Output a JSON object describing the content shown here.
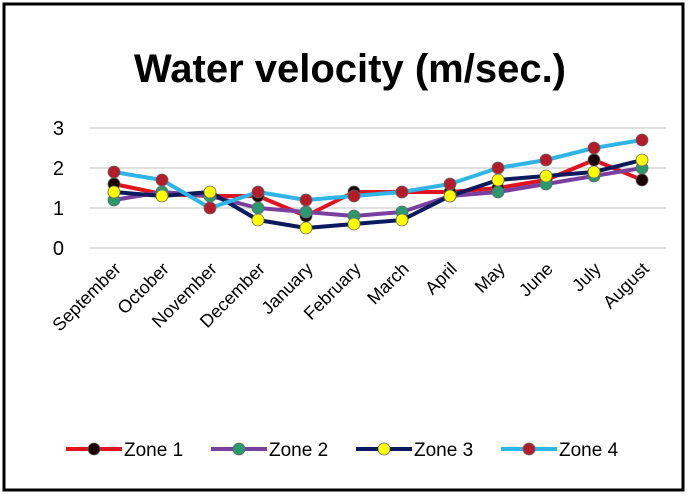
{
  "chart_data": {
    "type": "line",
    "title": "Water velocity  (m/sec.)",
    "categories": [
      "September",
      "October",
      "November",
      "December",
      "January",
      "February",
      "March",
      "April",
      "May",
      "June",
      "July",
      "August"
    ],
    "series": [
      {
        "name": "Zone 1",
        "color": "#e0141e",
        "marker_color": "#1a0000",
        "values": [
          1.6,
          1.35,
          1.3,
          1.3,
          0.8,
          1.4,
          1.4,
          1.4,
          1.5,
          1.7,
          2.2,
          1.7
        ]
      },
      {
        "name": "Zone 2",
        "color": "#7b3fa0",
        "marker_color": "#2a9a6e",
        "values": [
          1.2,
          1.4,
          1.3,
          1.0,
          0.9,
          0.8,
          0.9,
          1.3,
          1.4,
          1.6,
          1.8,
          2.0
        ]
      },
      {
        "name": "Zone 3",
        "color": "#0a1a5c",
        "marker_color": "#ffff00",
        "values": [
          1.4,
          1.3,
          1.4,
          0.7,
          0.5,
          0.6,
          0.7,
          1.3,
          1.7,
          1.8,
          1.9,
          2.2
        ]
      },
      {
        "name": "Zone 4",
        "color": "#2fb4e6",
        "marker_color": "#b51c2a",
        "values": [
          1.9,
          1.7,
          1.0,
          1.4,
          1.2,
          1.3,
          1.4,
          1.6,
          2.0,
          2.2,
          2.5,
          2.7
        ]
      }
    ],
    "ylim": [
      0,
      3
    ],
    "yticks": [
      0,
      1,
      2,
      3
    ],
    "grid": true,
    "legend": "bottom"
  }
}
